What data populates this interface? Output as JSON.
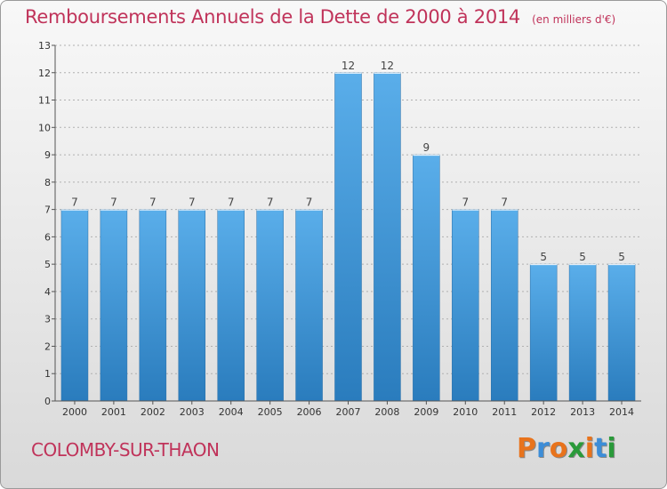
{
  "header": {
    "title": "Remboursements Annuels de la Dette de 2000 à 2014",
    "subtitle": "(en milliers d'€)"
  },
  "footer": {
    "commune": "COLOMBY-SUR-THAON",
    "brand": "Proxiti",
    "brand_colors": [
      "#e8731c",
      "#3c8dd8",
      "#e8731c",
      "#2a9a3a",
      "#e8731c",
      "#3c8dd8",
      "#2a9a3a"
    ]
  },
  "colors": {
    "bar": "#4a9fe0",
    "bar_dark": "#2c7fc0",
    "accent": "#c0335a",
    "grid": "#b0b0b0"
  },
  "chart_data": {
    "type": "bar",
    "title": "Remboursements Annuels de la Dette de 2000 à 2014",
    "subtitle": "(en milliers d'€)",
    "categories": [
      "2000",
      "2001",
      "2002",
      "2003",
      "2004",
      "2005",
      "2006",
      "2007",
      "2008",
      "2009",
      "2010",
      "2011",
      "2012",
      "2013",
      "2014"
    ],
    "values": [
      7,
      7,
      7,
      7,
      7,
      7,
      7,
      12,
      12,
      9,
      7,
      7,
      5,
      5,
      5
    ],
    "data_labels": [
      "7",
      "7",
      "7",
      "7",
      "7",
      "7",
      "7",
      "12",
      "12",
      "9",
      "7",
      "7",
      "5",
      "5",
      "5"
    ],
    "y_ticks": [
      "0",
      "1",
      "2",
      "3",
      "4",
      "5",
      "6",
      "7",
      "8",
      "9",
      "10",
      "11",
      "12",
      "13"
    ],
    "ylim": [
      0,
      13
    ],
    "grid": true,
    "xlabel": "",
    "ylabel": ""
  }
}
